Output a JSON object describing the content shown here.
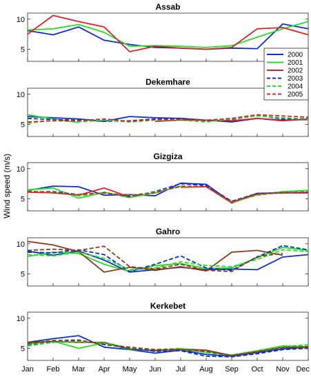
{
  "chart_data": {
    "type": "line",
    "ylabel": "Wind speed (m/s)",
    "months": [
      "Jan",
      "Feb",
      "Mar",
      "Apr",
      "May",
      "Jun",
      "Jul",
      "Aug",
      "Sep",
      "Oct",
      "Nov",
      "Dec"
    ],
    "y_ticks": [
      5,
      10
    ],
    "legend": {
      "placement": "right, beside Assab and Dekemhare panels",
      "entries": [
        {
          "label": "2000",
          "color": "#0a2dcf",
          "dash": false
        },
        {
          "label": "2001",
          "color": "#22e01f",
          "dash": false
        },
        {
          "label": "2002",
          "color": "#e02020",
          "dash": false
        },
        {
          "label": "2003",
          "color": "#0a2dcf",
          "dash": true
        },
        {
          "label": "2004",
          "color": "#22e01f",
          "dash": true
        },
        {
          "label": "2005",
          "color": "#e02020",
          "dash": true
        }
      ]
    },
    "panels": [
      {
        "title": "Assab",
        "ylim": [
          3,
          11
        ],
        "series": [
          {
            "name": "2000",
            "color": "#0a2dcf",
            "dash": false,
            "values": [
              8.1,
              7.4,
              8.7,
              6.5,
              5.8,
              5.3,
              5.2,
              5.0,
              5.2,
              5.1,
              9.2,
              8.4
            ]
          },
          {
            "name": "2001",
            "color": "#22e01f",
            "dash": false,
            "values": [
              8.2,
              8.4,
              9.1,
              7.8,
              5.5,
              5.6,
              5.5,
              5.3,
              5.6,
              7.0,
              8.4,
              9.6
            ]
          },
          {
            "name": "2002",
            "color": "#e02020",
            "dash": false,
            "values": [
              7.5,
              10.6,
              9.6,
              8.7,
              4.6,
              5.5,
              5.2,
              5.0,
              5.3,
              8.4,
              8.6,
              7.4
            ]
          }
        ]
      },
      {
        "title": "Dekemhare",
        "ylim": [
          3,
          11
        ],
        "series": [
          {
            "name": "2000",
            "color": "#0a2dcf",
            "dash": false,
            "values": [
              6.3,
              6.1,
              5.9,
              5.5,
              6.3,
              6.1,
              6.0,
              5.7,
              5.4,
              6.0,
              5.7,
              5.8
            ]
          },
          {
            "name": "2001",
            "color": "#22e01f",
            "dash": false,
            "values": [
              6.6,
              5.9,
              5.3,
              null,
              null,
              null,
              null,
              null,
              null,
              null,
              null,
              null
            ]
          },
          {
            "name": "2002",
            "color": "#e02020",
            "dash": false,
            "values": [
              null,
              null,
              null,
              null,
              null,
              5.5,
              5.7,
              5.7,
              5.6,
              6.0,
              5.6,
              5.9
            ]
          },
          {
            "name": "2003",
            "color": "#0a2dcf",
            "dash": true,
            "values": [
              6.0,
              5.8,
              5.7,
              5.5,
              5.6,
              5.9,
              6.0,
              5.6,
              5.8,
              6.5,
              5.9,
              6.0
            ]
          },
          {
            "name": "2004",
            "color": "#22e01f",
            "dash": true,
            "values": [
              5.2,
              5.7,
              5.4,
              5.7,
              5.4,
              5.7,
              5.7,
              5.4,
              5.9,
              6.4,
              6.1,
              5.9
            ]
          },
          {
            "name": "2005",
            "color": "#e02020",
            "dash": true,
            "values": [
              5.4,
              5.6,
              5.6,
              5.9,
              5.5,
              5.8,
              5.8,
              5.7,
              6.0,
              6.6,
              6.4,
              6.2
            ]
          }
        ]
      },
      {
        "title": "Gizgiza",
        "ylim": [
          3,
          11
        ],
        "series": [
          {
            "name": "2000",
            "color": "#0a2dcf",
            "dash": false,
            "values": [
              6.4,
              7.1,
              7.0,
              5.6,
              5.7,
              5.5,
              7.6,
              7.4,
              4.4,
              5.9,
              6.0,
              6.0
            ]
          },
          {
            "name": "2001",
            "color": "#22e01f",
            "dash": false,
            "values": [
              6.5,
              6.8,
              5.1,
              6.1,
              5.2,
              6.0,
              7.1,
              null,
              4.5,
              5.7,
              6.2,
              6.4
            ]
          },
          {
            "name": "2002",
            "color": "#e02020",
            "dash": false,
            "values": [
              6.1,
              6.0,
              5.6,
              6.8,
              5.3,
              null,
              6.9,
              7.0,
              4.3,
              5.8,
              6.0,
              6.0
            ]
          },
          {
            "name": "2003",
            "color": "#0a2dcf",
            "dash": true,
            "values": [
              6.2,
              6.2,
              5.7,
              6.0,
              5.4,
              6.2,
              7.5,
              7.2,
              4.6,
              5.9,
              6.0,
              6.1
            ]
          },
          {
            "name": "2004",
            "color": "#22e01f",
            "dash": true,
            "values": [
              6.3,
              6.1,
              5.5,
              5.9,
              5.6,
              6.1,
              7.0,
              7.0,
              4.4,
              5.6,
              6.1,
              6.2
            ]
          },
          {
            "name": "2005",
            "color": "#e02020",
            "dash": true,
            "values": [
              6.2,
              6.0,
              5.7,
              6.0,
              5.5,
              6.0,
              7.1,
              7.0,
              4.5,
              5.8,
              6.0,
              6.1
            ]
          }
        ]
      },
      {
        "title": "Gahro",
        "ylim": [
          3,
          11
        ],
        "series": [
          {
            "name": "2000",
            "color": "#0a2dcf",
            "dash": false,
            "values": [
              8.8,
              8.1,
              8.8,
              7.3,
              5.3,
              5.7,
              6.1,
              5.7,
              5.8,
              5.7,
              7.8,
              8.2
            ]
          },
          {
            "name": "2001",
            "color": "#22e01f",
            "dash": false,
            "values": [
              7.9,
              8.6,
              8.4,
              6.6,
              5.4,
              6.4,
              6.7,
              5.9,
              6.0,
              7.7,
              9.4,
              8.9
            ]
          },
          {
            "name": "2002",
            "color": "#8b3a1a",
            "dash": false,
            "values": [
              10.4,
              9.8,
              8.7,
              5.3,
              6.1,
              5.6,
              6.2,
              5.5,
              8.6,
              8.9,
              8.1,
              null
            ]
          },
          {
            "name": "2003",
            "color": "#0a2dcf",
            "dash": true,
            "values": [
              8.6,
              8.5,
              9.0,
              8.2,
              5.4,
              6.6,
              8.0,
              6.0,
              5.6,
              7.8,
              9.7,
              9.0
            ]
          },
          {
            "name": "2004",
            "color": "#22e01f",
            "dash": true,
            "values": [
              8.2,
              8.0,
              8.6,
              7.6,
              5.7,
              6.0,
              7.0,
              6.4,
              6.2,
              7.4,
              9.0,
              8.7
            ]
          },
          {
            "name": "2005",
            "color": "#8b3a1a",
            "dash": true,
            "values": [
              8.9,
              9.1,
              8.9,
              9.6,
              6.2,
              5.8,
              6.6,
              5.6,
              5.4,
              7.9,
              8.4,
              null
            ]
          }
        ]
      },
      {
        "title": "Kerkebet",
        "ylim": [
          3,
          11
        ],
        "series": [
          {
            "name": "2000",
            "color": "#0a2dcf",
            "dash": false,
            "values": [
              6.0,
              6.6,
              7.1,
              5.2,
              4.8,
              4.2,
              4.7,
              4.0,
              3.7,
              4.3,
              4.9,
              5.2
            ]
          },
          {
            "name": "2001",
            "color": "#22e01f",
            "dash": false,
            "values": [
              5.7,
              6.2,
              5.0,
              5.9,
              4.8,
              4.7,
              4.8,
              4.4,
              3.9,
              4.6,
              5.4,
              5.3
            ]
          },
          {
            "name": "2002",
            "color": "#8b3a1a",
            "dash": false,
            "values": [
              6.0,
              6.1,
              6.0,
              6.0,
              4.9,
              4.6,
              4.9,
              4.7,
              3.8,
              4.5,
              5.2,
              5.1
            ]
          },
          {
            "name": "2003",
            "color": "#0a2dcf",
            "dash": true,
            "values": [
              5.5,
              6.0,
              6.3,
              5.7,
              5.0,
              4.5,
              4.6,
              3.7,
              3.6,
              4.1,
              4.8,
              5.0
            ]
          },
          {
            "name": "2004",
            "color": "#22e01f",
            "dash": true,
            "values": [
              5.4,
              6.0,
              6.1,
              5.9,
              5.1,
              4.8,
              5.0,
              4.3,
              3.8,
              4.5,
              5.3,
              5.6
            ]
          },
          {
            "name": "2005",
            "color": "#8b3a1a",
            "dash": true,
            "values": [
              5.8,
              6.3,
              6.4,
              5.6,
              5.2,
              4.8,
              4.8,
              4.5,
              3.8,
              4.4,
              5.1,
              5.3
            ]
          }
        ]
      }
    ]
  }
}
